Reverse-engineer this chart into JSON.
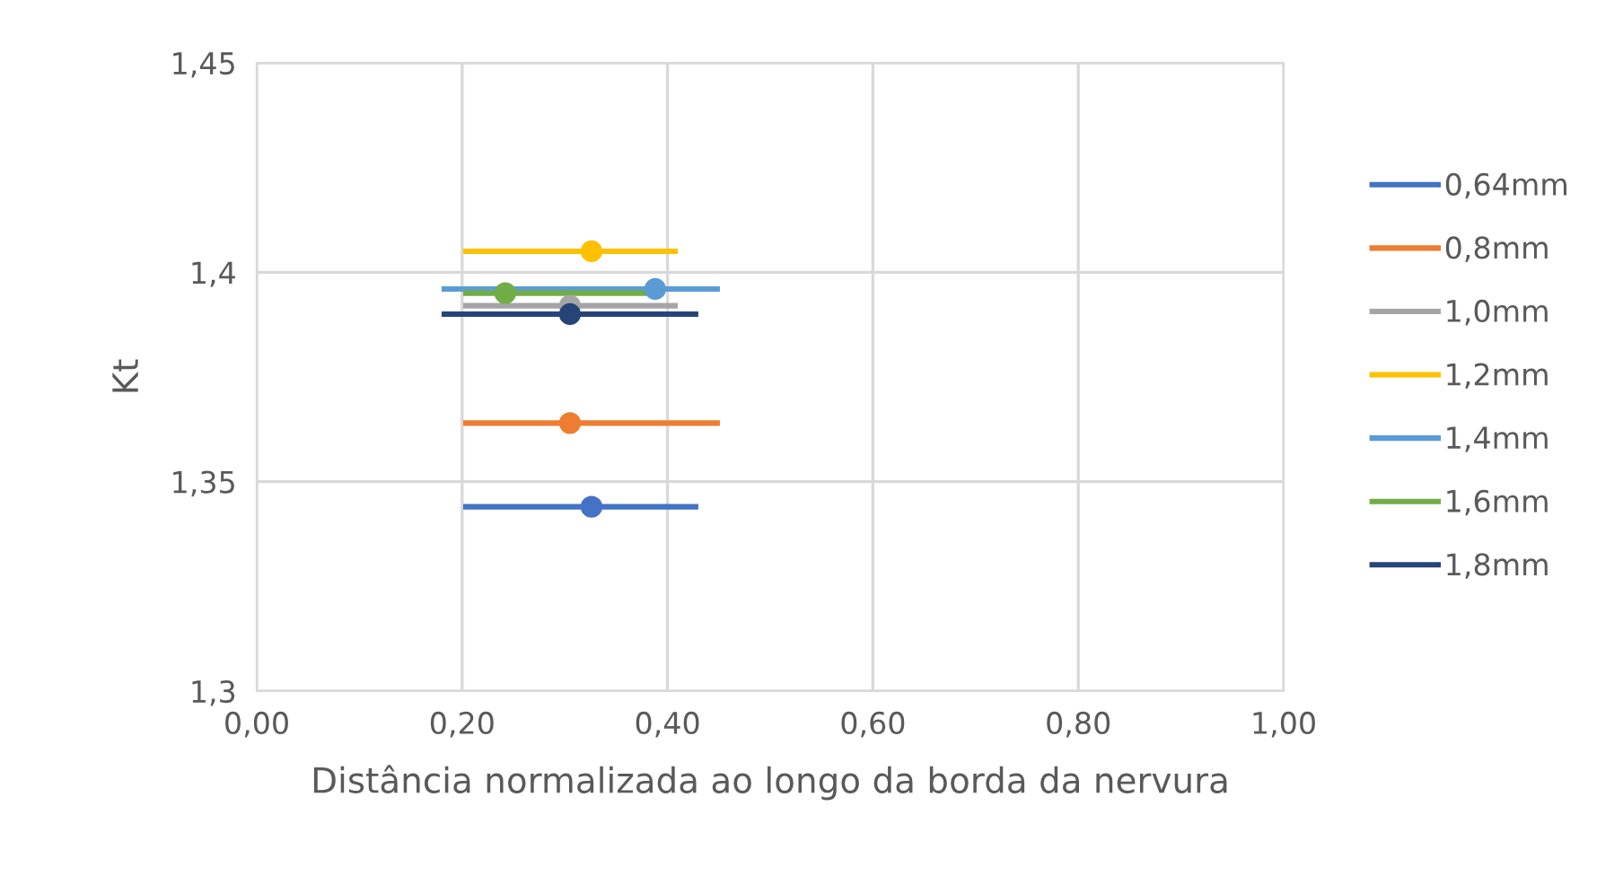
{
  "chart_data": {
    "type": "scatter",
    "xlabel": "Distância normalizada ao longo da borda da nervura",
    "ylabel": "Kt",
    "xlim": [
      0,
      1
    ],
    "xticks": [
      {
        "value": 0,
        "label": "0,00"
      },
      {
        "value": 0.2,
        "label": "0,20"
      },
      {
        "value": 0.4,
        "label": "0,40"
      },
      {
        "value": 0.6,
        "label": "0,60"
      },
      {
        "value": 0.8,
        "label": "0,80"
      },
      {
        "value": 1,
        "label": "1,00"
      }
    ],
    "ylim": [
      1.3,
      1.45
    ],
    "yticks": [
      {
        "value": 1.3,
        "label": "1,3"
      },
      {
        "value": 1.35,
        "label": "1,35"
      },
      {
        "value": 1.4,
        "label": "1,4"
      },
      {
        "value": 1.45,
        "label": "1,45"
      }
    ],
    "grid": true,
    "legend": "right",
    "marker": "circle",
    "series": [
      {
        "name": "0,64mm",
        "color": "#4472c4",
        "x": [
          0.326
        ],
        "values": [
          1.344
        ],
        "xerrors": [
          [
            0.201,
            0.43
          ]
        ]
      },
      {
        "name": "0,8mm",
        "color": "#ed7d31",
        "x": [
          0.305
        ],
        "values": [
          1.364
        ],
        "xerrors": [
          [
            0.201,
            0.451
          ]
        ]
      },
      {
        "name": "1,0mm",
        "color": "#a5a5a5",
        "x": [
          0.305
        ],
        "values": [
          1.392
        ],
        "xerrors": [
          [
            0.201,
            0.41
          ]
        ]
      },
      {
        "name": "1,2mm",
        "color": "#ffc000",
        "x": [
          0.326
        ],
        "values": [
          1.405
        ],
        "xerrors": [
          [
            0.201,
            0.41
          ]
        ]
      },
      {
        "name": "1,4mm",
        "color": "#5b9bd5",
        "x": [
          0.388
        ],
        "values": [
          1.396
        ],
        "xerrors": [
          [
            0.18,
            0.451
          ]
        ]
      },
      {
        "name": "1,6mm",
        "color": "#70ad47",
        "x": [
          0.242
        ],
        "values": [
          1.395
        ],
        "xerrors": [
          [
            0.201,
            0.388
          ]
        ]
      },
      {
        "name": "1,8mm",
        "color": "#264478",
        "x": [
          0.305
        ],
        "values": [
          1.39
        ],
        "xerrors": [
          [
            0.18,
            0.43
          ]
        ]
      }
    ]
  }
}
